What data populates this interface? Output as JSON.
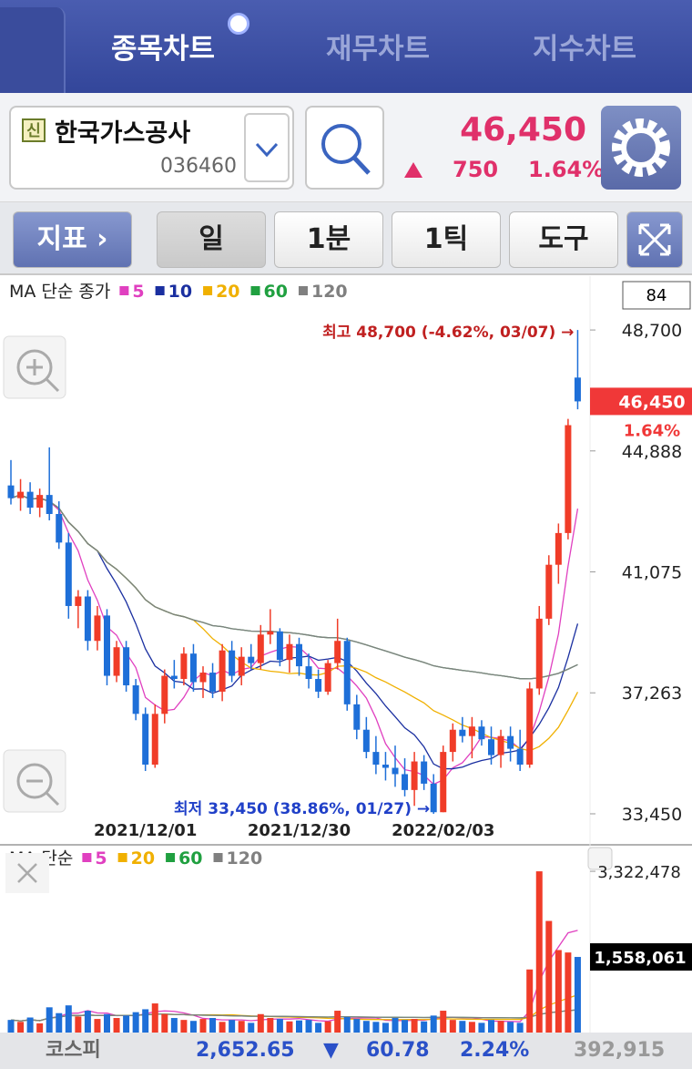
{
  "tabs": [
    "종목차트",
    "재무차트",
    "지수차트"
  ],
  "stock": {
    "badge": "신",
    "name": "한국가스공사",
    "code": "036460",
    "price": "46,450",
    "change": "750",
    "change_pct": "1.64%"
  },
  "toolbar": {
    "indicator": "지표",
    "period": "일",
    "minute": "1분",
    "tick": "1틱",
    "tools": "도구"
  },
  "chart_data": [
    {
      "type": "candlestick",
      "legend_title": "MA 단순 종가",
      "count_box": "84",
      "up_color": "#f03c28",
      "down_color": "#1e6fd8",
      "ma": [
        {
          "name": "5",
          "color": "#e040c0"
        },
        {
          "name": "10",
          "color": "#1a2fa0"
        },
        {
          "name": "20",
          "color": "#f0b000"
        },
        {
          "name": "60",
          "color": "#20a040"
        },
        {
          "name": "120",
          "color": "#808080"
        }
      ],
      "categories": [
        null,
        null,
        null,
        null,
        null,
        null,
        null,
        null,
        null,
        null,
        null,
        null,
        null,
        null,
        "2021/12/01",
        null,
        null,
        null,
        null,
        null,
        null,
        null,
        null,
        null,
        null,
        null,
        null,
        null,
        null,
        null,
        "2021/12/30",
        null,
        null,
        null,
        null,
        null,
        null,
        null,
        null,
        null,
        null,
        null,
        null,
        null,
        null,
        "2022/02/03",
        null,
        null,
        null,
        null,
        null,
        null,
        null,
        null,
        null,
        null,
        null,
        null,
        null,
        null
      ],
      "candles": [
        [
          43800,
          44600,
          43200,
          43400
        ],
        [
          43400,
          44000,
          43000,
          43600
        ],
        [
          43600,
          43900,
          42900,
          43100
        ],
        [
          43100,
          43700,
          42800,
          43500
        ],
        [
          43500,
          45000,
          42700,
          42900
        ],
        [
          42900,
          43300,
          41800,
          42000
        ],
        [
          42000,
          42300,
          39600,
          40000
        ],
        [
          40000,
          40500,
          39300,
          40300
        ],
        [
          40300,
          40500,
          38600,
          38900
        ],
        [
          38900,
          40000,
          38600,
          39700
        ],
        [
          39700,
          39900,
          37500,
          37800
        ],
        [
          37800,
          38900,
          37600,
          38700
        ],
        [
          38700,
          38900,
          37300,
          37500
        ],
        [
          37500,
          37700,
          36400,
          36600
        ],
        [
          36600,
          36800,
          34800,
          35000
        ],
        [
          35000,
          36900,
          34900,
          36600
        ],
        [
          36600,
          38000,
          36300,
          37800
        ],
        [
          37800,
          38300,
          37400,
          37700
        ],
        [
          37700,
          38700,
          37500,
          38500
        ],
        [
          38500,
          38800,
          37300,
          37600
        ],
        [
          37600,
          38100,
          37100,
          37900
        ],
        [
          37900,
          38200,
          37100,
          37300
        ],
        [
          37300,
          38800,
          37000,
          38600
        ],
        [
          38600,
          38900,
          37600,
          37800
        ],
        [
          37800,
          38700,
          37500,
          38400
        ],
        [
          38400,
          38800,
          38000,
          38200
        ],
        [
          38200,
          39400,
          38000,
          39100
        ],
        [
          39100,
          39900,
          38800,
          39200
        ],
        [
          39200,
          39300,
          38100,
          38300
        ],
        [
          38300,
          39100,
          37900,
          38800
        ],
        [
          38800,
          39000,
          37800,
          38100
        ],
        [
          38100,
          38500,
          37400,
          37700
        ],
        [
          37700,
          38000,
          37100,
          37300
        ],
        [
          37300,
          38300,
          37200,
          38200
        ],
        [
          38200,
          39600,
          38000,
          38900
        ],
        [
          38900,
          39000,
          36700,
          36900
        ],
        [
          36900,
          37200,
          35800,
          36100
        ],
        [
          36100,
          36500,
          35200,
          35400
        ],
        [
          35400,
          35900,
          34700,
          35000
        ],
        [
          35000,
          35400,
          34500,
          34900
        ],
        [
          34900,
          35600,
          34300,
          34700
        ],
        [
          34700,
          35200,
          34000,
          34200
        ],
        [
          34200,
          35400,
          33700,
          35100
        ],
        [
          35100,
          35300,
          34200,
          34400
        ],
        [
          34400,
          34700,
          33450,
          33500
        ],
        [
          33500,
          35600,
          33500,
          35400
        ],
        [
          35400,
          36300,
          35100,
          36100
        ],
        [
          36100,
          36500,
          35700,
          35900
        ],
        [
          35900,
          36500,
          35200,
          36200
        ],
        [
          36200,
          36400,
          35600,
          35800
        ],
        [
          35800,
          36200,
          35000,
          35300
        ],
        [
          35300,
          36100,
          34900,
          35900
        ],
        [
          35900,
          36200,
          35100,
          35500
        ],
        [
          35500,
          36100,
          34800,
          35000
        ],
        [
          35000,
          37600,
          34900,
          37400
        ],
        [
          37400,
          40000,
          37200,
          39600
        ],
        [
          39600,
          41600,
          39400,
          41300
        ],
        [
          41300,
          42600,
          40700,
          42300
        ],
        [
          42300,
          45900,
          42100,
          45700
        ],
        [
          47200,
          48700,
          46200,
          46450
        ]
      ],
      "ylim": [
        32530,
        50340
      ],
      "yticks": [
        {
          "value": 48700,
          "label": "48,700"
        },
        {
          "value": 44888,
          "label": "44,888"
        },
        {
          "value": 41075,
          "label": "41,075"
        },
        {
          "value": 37263,
          "label": "37,263"
        },
        {
          "value": 33450,
          "label": "33,450"
        }
      ],
      "current_price": {
        "value": 46450,
        "label": "46,450"
      },
      "current_change": "1.64%",
      "high_annotation": "최고 48,700 (-4.62%, 03/07) →",
      "low_annotation": "최저 33,450 (38.86%, 01/27) →"
    },
    {
      "type": "bar",
      "legend_title": "MA 단순",
      "ma": [
        {
          "name": "5",
          "color": "#e040c0"
        },
        {
          "name": "20",
          "color": "#f0b000"
        },
        {
          "name": "60",
          "color": "#20a040"
        },
        {
          "name": "120",
          "color": "#808080"
        }
      ],
      "values": [
        260000,
        220000,
        310000,
        190000,
        520000,
        400000,
        560000,
        330000,
        450000,
        280000,
        380000,
        300000,
        350000,
        420000,
        480000,
        600000,
        380000,
        300000,
        260000,
        240000,
        280000,
        300000,
        220000,
        260000,
        240000,
        200000,
        380000,
        300000,
        280000,
        230000,
        250000,
        260000,
        200000,
        230000,
        450000,
        320000,
        280000,
        240000,
        220000,
        200000,
        300000,
        260000,
        280000,
        230000,
        350000,
        450000,
        260000,
        240000,
        220000,
        200000,
        260000,
        240000,
        220000,
        200000,
        1300000,
        3322478,
        2300000,
        1700000,
        1650000,
        1558061
      ],
      "ylim": [
        0,
        3850000
      ],
      "yticks": [
        {
          "value": 3322478,
          "label": "3,322,478"
        }
      ],
      "current": {
        "value": 1558061,
        "label": "1,558,061"
      }
    }
  ],
  "footer": {
    "index_name": "코스피",
    "value": "2,652.65",
    "arrow": "▼",
    "change": "60.78",
    "change_pct": "2.24%",
    "volume": "392,915"
  }
}
